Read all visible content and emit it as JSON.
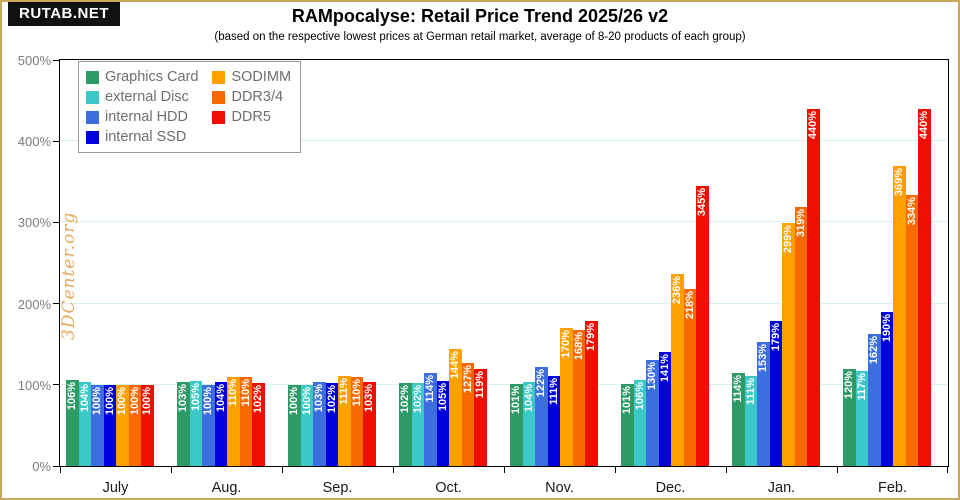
{
  "page": {
    "badge": "RUTAB.NET",
    "title": "RAMpocalyse: Retail Price Trend 2025/26 v2",
    "subtitle": "(based on the respective lowest prices at German retail market, average of 8-20 products of each group)",
    "watermark": "3DCenter.org"
  },
  "chart_data": {
    "type": "bar",
    "title": "RAMpocalyse: Retail Price Trend 2025/26 v2",
    "subtitle": "(based on the respective lowest prices at German retail market, average of 8-20 products of each group)",
    "categories": [
      "July",
      "Aug.",
      "Sep.",
      "Oct.",
      "Nov.",
      "Dec.",
      "Jan.",
      "Feb."
    ],
    "series": [
      {
        "name": "Graphics Card",
        "color": "#2e9a66",
        "values": [
          106,
          103,
          100,
          102,
          101,
          101,
          114,
          120
        ]
      },
      {
        "name": "external Disc",
        "color": "#3cc8c8",
        "values": [
          104,
          105,
          100,
          102,
          104,
          106,
          111,
          117
        ]
      },
      {
        "name": "internal HDD",
        "color": "#3c6ee0",
        "values": [
          100,
          100,
          103,
          114,
          122,
          130,
          153,
          162
        ]
      },
      {
        "name": "internal SSD",
        "color": "#0000dc",
        "values": [
          100,
          104,
          102,
          105,
          111,
          141,
          179,
          190
        ]
      },
      {
        "name": "SODIMM",
        "color": "#ffa000",
        "values": [
          100,
          110,
          111,
          144,
          170,
          236,
          299,
          369
        ]
      },
      {
        "name": "DDR3/4",
        "color": "#f86a00",
        "values": [
          100,
          110,
          110,
          127,
          168,
          218,
          319,
          334
        ]
      },
      {
        "name": "DDR5",
        "color": "#ee0f00",
        "values": [
          100,
          102,
          103,
          119,
          179,
          345,
          440,
          440
        ]
      }
    ],
    "value_label_suffix": "%",
    "ylim": [
      0,
      500
    ],
    "ytick_step": 100,
    "ytick_labels": [
      "0%",
      "100%",
      "200%",
      "300%",
      "400%",
      "500%"
    ],
    "grid": true,
    "legend_position": "top-left",
    "legend_columns": [
      [
        "Graphics Card",
        "external Disc",
        "internal HDD",
        "internal SSD"
      ],
      [
        "SODIMM",
        "DDR3/4",
        "DDR5"
      ]
    ],
    "accent_colors": {
      "page_border": "#c9a55e",
      "gridline": "#d9f1f1",
      "axis": "#000000",
      "watermark_text": "#e9a95c"
    }
  }
}
